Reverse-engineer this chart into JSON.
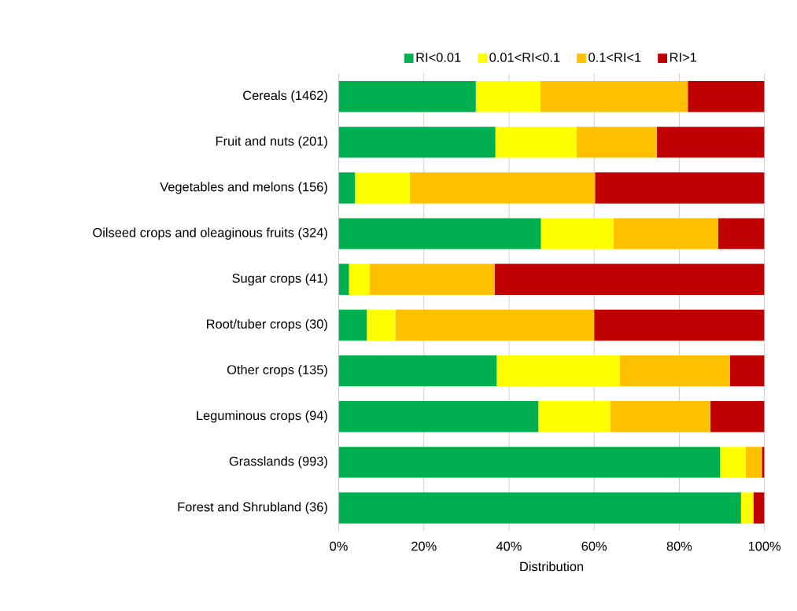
{
  "chart_data": {
    "type": "bar",
    "orientation": "horizontal",
    "stacked": true,
    "xlabel": "Distribution",
    "categories": [
      "Cereals (1462)",
      "Fruit and nuts (201)",
      "Vegetables and melons (156)",
      "Oilseed crops and oleaginous fruits (324)",
      "Sugar crops  (41)",
      "Root/tuber crops (30)",
      "Other crops  (135)",
      "Leguminous crops  (94)",
      "Grasslands (993)",
      "Forest and Shrubland (36)"
    ],
    "series": [
      {
        "name": "RI<0.01",
        "color": "#00b050",
        "values": [
          32.2,
          36.8,
          3.8,
          47.5,
          2.4,
          6.6,
          37.1,
          46.9,
          89.6,
          94.5
        ]
      },
      {
        "name": "0.01<RI<0.1",
        "color": "#ffff00",
        "values": [
          15.2,
          19.1,
          12.9,
          17.1,
          4.8,
          6.7,
          28.9,
          16.9,
          6.0,
          2.9
        ]
      },
      {
        "name": "0.1<RI<1",
        "color": "#ffc000",
        "values": [
          34.6,
          18.8,
          43.5,
          24.5,
          29.4,
          46.7,
          25.9,
          23.5,
          3.8,
          0
        ]
      },
      {
        "name": "RI>1",
        "color": "#c00000",
        "values": [
          18.0,
          25.3,
          39.8,
          10.9,
          63.4,
          40.0,
          8.1,
          12.7,
          0.6,
          2.6
        ]
      }
    ],
    "xlim": [
      0,
      100
    ],
    "xticks": [
      {
        "value": 0,
        "label": "0%"
      },
      {
        "value": 20,
        "label": "20%"
      },
      {
        "value": 40,
        "label": "40%"
      },
      {
        "value": 60,
        "label": "60%"
      },
      {
        "value": 80,
        "label": "80%"
      },
      {
        "value": 100,
        "label": "100%"
      }
    ],
    "grid": "x",
    "legend": "top"
  }
}
